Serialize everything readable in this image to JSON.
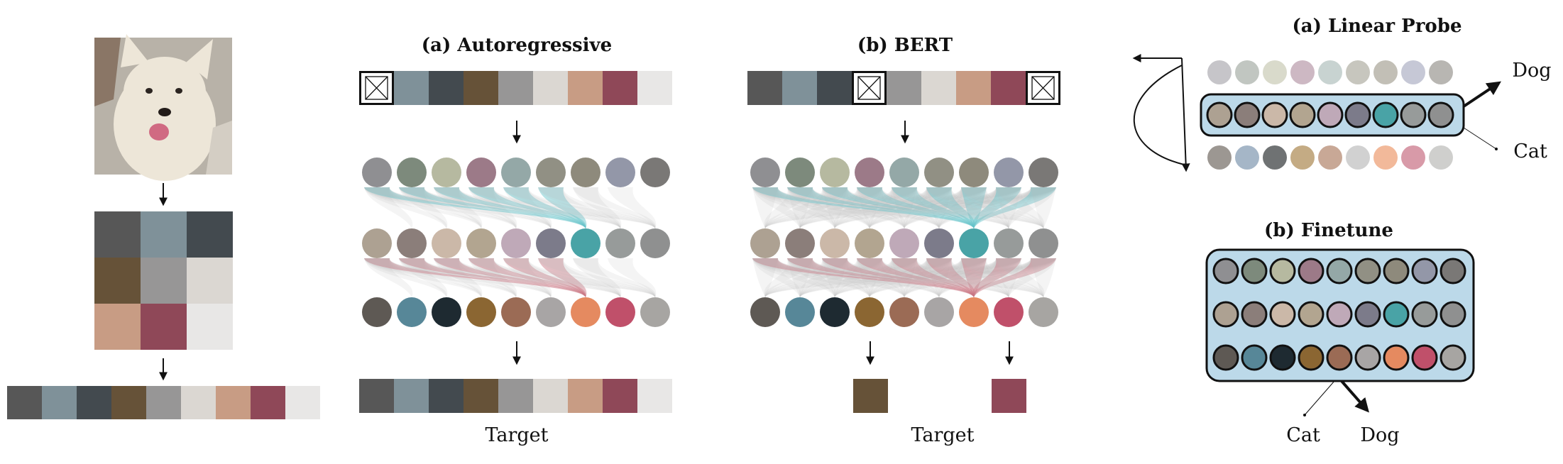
{
  "palette": {
    "image_tokens": [
      "#575757",
      "#7f9199",
      "#434a4f",
      "#665238",
      "#979696",
      "#dbd7d2",
      "#c89c84",
      "#8f4858",
      "#e8e7e6"
    ],
    "row_top": [
      "#8f8f92",
      "#7d8a7c",
      "#b6b9a0",
      "#9c7a88",
      "#94a8a7",
      "#919084",
      "#8e8a7c",
      "#9397a8",
      "#7a7876"
    ],
    "row_mid": [
      "#ada192",
      "#8b7e7a",
      "#cbb8a8",
      "#b2a590",
      "#bfa9b8",
      "#7c7b8a",
      "#49a3a6",
      "#979b9a",
      "#8f9090"
    ],
    "row_bot": [
      "#5e5954",
      "#578798",
      "#1e2a31",
      "#8b6632",
      "#9b6b55",
      "#a8a5a5",
      "#e58a60",
      "#c0506a",
      "#a7a5a2"
    ],
    "probe_top": [
      "#c6c5c9",
      "#c1c6c1",
      "#d9dacb",
      "#cdb8c3",
      "#c8d3d1",
      "#c7c6be",
      "#c2bfb6",
      "#c6c8d6",
      "#b8b6b2"
    ],
    "probe_bot": [
      "#9c9792",
      "#a5b6c7",
      "#6f7273",
      "#c4ab84",
      "#c8a896",
      "#d1d1d1",
      "#f2b99a",
      "#d89aa8",
      "#cfcfcd"
    ],
    "box_fill": "#bcd9e9",
    "teal_attention": "#5fc2c8",
    "red_attention": "#c7707f",
    "gray_attention": "#b9babb"
  },
  "sections": {
    "autoregressive_title": "(a) Autoregressive",
    "bert_title": "(b) BERT",
    "linear_probe_title": "(a) Linear Probe",
    "finetune_title": "(b) Finetune"
  },
  "labels": {
    "target_ar": "Target",
    "target_bert": "Target",
    "dog_probe": "Dog",
    "cat_probe": "Cat",
    "cat_finetune": "Cat",
    "dog_finetune": "Dog"
  },
  "masks": {
    "autoregressive": [
      0
    ],
    "bert": [
      3,
      8
    ]
  },
  "bert_targets": [
    3,
    7
  ],
  "photo": {
    "subject": "white-dog-photo",
    "background": "#b8b2a8",
    "fur": "#ede6d8"
  }
}
